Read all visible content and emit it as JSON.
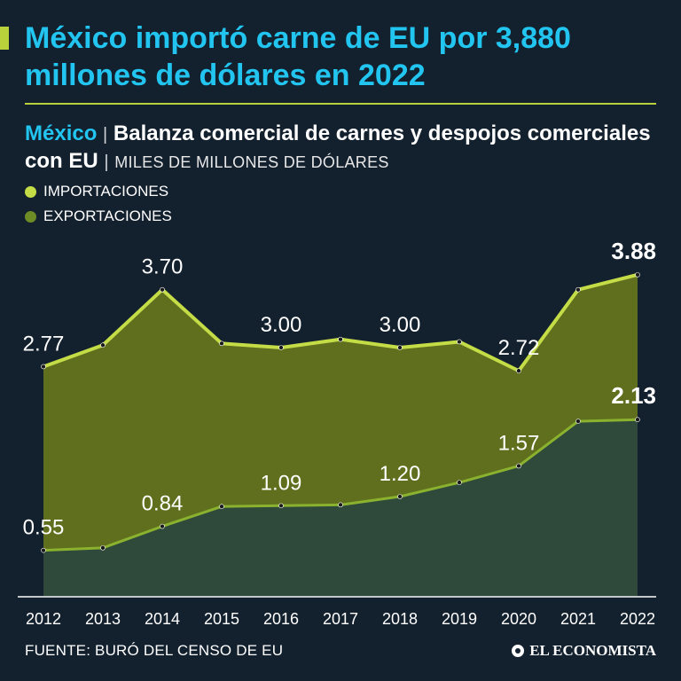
{
  "header": {
    "title": "México importó carne de EU por 3,880 millones de dólares en 2022"
  },
  "subtitle": {
    "country": "México",
    "separator": "|",
    "description": "Balanza comercial de carnes y despojos comerciales con EU",
    "units_separator": "|",
    "units": "MILES DE MILLONES DE DÓLARES"
  },
  "legend": {
    "imports_label": "IMPORTACIONES",
    "exports_label": "EXPORTACIONES"
  },
  "colors": {
    "background": "#13202e",
    "title": "#22c4f0",
    "imports_line": "#c4dc46",
    "imports_area": "#5f6f1d",
    "exports_line": "#8ab22e",
    "exports_area": "#2f4a3a",
    "legend_imports": "#c4dc46",
    "legend_exports": "#6d8c26"
  },
  "chart_data": {
    "type": "area",
    "categories": [
      "2012",
      "2013",
      "2014",
      "2015",
      "2016",
      "2017",
      "2018",
      "2019",
      "2020",
      "2021",
      "2022"
    ],
    "series": [
      {
        "name": "IMPORTACIONES",
        "values": [
          2.77,
          3.03,
          3.7,
          3.05,
          3.0,
          3.1,
          3.0,
          3.07,
          2.72,
          3.7,
          3.88
        ],
        "labels": [
          "2.77",
          "",
          "3.70",
          "",
          "3.00",
          "",
          "3.00",
          "",
          "2.72",
          "",
          "3.88"
        ]
      },
      {
        "name": "EXPORTACIONES",
        "values": [
          0.55,
          0.58,
          0.84,
          1.08,
          1.09,
          1.1,
          1.2,
          1.37,
          1.57,
          2.11,
          2.13
        ],
        "labels": [
          "0.55",
          "",
          "0.84",
          "",
          "1.09",
          "",
          "1.20",
          "",
          "1.57",
          "",
          "2.13"
        ]
      }
    ],
    "ylim": [
      0,
      4.2
    ],
    "highlight_last": true
  },
  "footer": {
    "source": "FUENTE: BURÓ DEL CENSO DE EU",
    "brand": "EL ECONOMISTA"
  }
}
